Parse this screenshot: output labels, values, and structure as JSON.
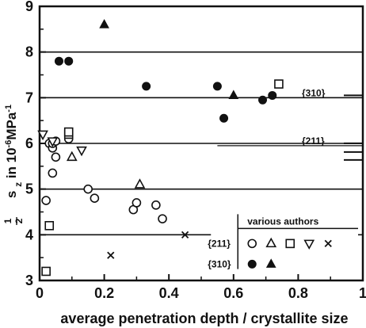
{
  "chart_data": {
    "type": "scatter",
    "xlabel": "average penetration depth / crystallite size",
    "ylabel_parts": {
      "fraction_num": "1",
      "fraction_den": "2",
      "s": "s",
      "sub": "z",
      "in": "in 10",
      "exp": "-6",
      "unit": "MPa",
      "unit_exp": "-1"
    },
    "xlim": [
      0,
      1
    ],
    "ylim": [
      3,
      9
    ],
    "x_ticks": [
      0,
      0.2,
      0.4,
      0.6,
      0.8,
      1
    ],
    "x_tick_labels": [
      "0",
      "0.2",
      "0.4",
      "0.6",
      "0.8",
      "1"
    ],
    "y_ticks": [
      3,
      4,
      5,
      6,
      7,
      8,
      9
    ],
    "y_tick_labels": [
      "3",
      "4",
      "5",
      "6",
      "7",
      "8",
      "9"
    ],
    "grid": "horizontal",
    "reference_lines": [
      {
        "label": "{310}",
        "y": 7.0
      },
      {
        "label": "{211}",
        "y": 5.95
      }
    ],
    "legend": {
      "title": "various authors",
      "placement": "bottom-right",
      "rows": [
        {
          "label": "{211}",
          "symbols": [
            "circle-open",
            "triangle-open",
            "square-open",
            "triangle-down-open",
            "cross"
          ]
        },
        {
          "label": "{310}",
          "symbols": [
            "circle-filled",
            "triangle-filled"
          ]
        }
      ]
    },
    "series": [
      {
        "symbol": "circle-open",
        "points": [
          [
            0.02,
            4.75
          ],
          [
            0.03,
            6.0
          ],
          [
            0.04,
            5.9
          ],
          [
            0.04,
            6.0
          ],
          [
            0.05,
            5.7
          ],
          [
            0.04,
            5.35
          ],
          [
            0.05,
            6.05
          ],
          [
            0.09,
            6.1
          ],
          [
            0.15,
            5.0
          ],
          [
            0.17,
            4.8
          ],
          [
            0.29,
            4.55
          ],
          [
            0.3,
            4.7
          ],
          [
            0.36,
            4.65
          ],
          [
            0.38,
            4.35
          ]
        ]
      },
      {
        "symbol": "triangle-open",
        "points": [
          [
            0.1,
            5.7
          ],
          [
            0.31,
            5.1
          ]
        ]
      },
      {
        "symbol": "square-open",
        "points": [
          [
            0.02,
            3.2
          ],
          [
            0.03,
            4.2
          ],
          [
            0.09,
            6.2
          ],
          [
            0.09,
            6.25
          ],
          [
            0.74,
            7.3
          ]
        ]
      },
      {
        "symbol": "triangle-down-open",
        "points": [
          [
            0.01,
            6.2
          ],
          [
            0.04,
            6.05
          ],
          [
            0.13,
            5.85
          ]
        ]
      },
      {
        "symbol": "cross",
        "points": [
          [
            0.22,
            3.55
          ],
          [
            0.45,
            4.0
          ]
        ]
      },
      {
        "symbol": "circle-filled",
        "points": [
          [
            0.06,
            7.8
          ],
          [
            0.09,
            7.8
          ],
          [
            0.33,
            7.25
          ],
          [
            0.55,
            7.25
          ],
          [
            0.57,
            6.55
          ],
          [
            0.69,
            6.95
          ],
          [
            0.72,
            7.05
          ]
        ]
      },
      {
        "symbol": "triangle-filled",
        "points": [
          [
            0.2,
            8.6
          ],
          [
            0.6,
            7.05
          ]
        ]
      }
    ]
  }
}
